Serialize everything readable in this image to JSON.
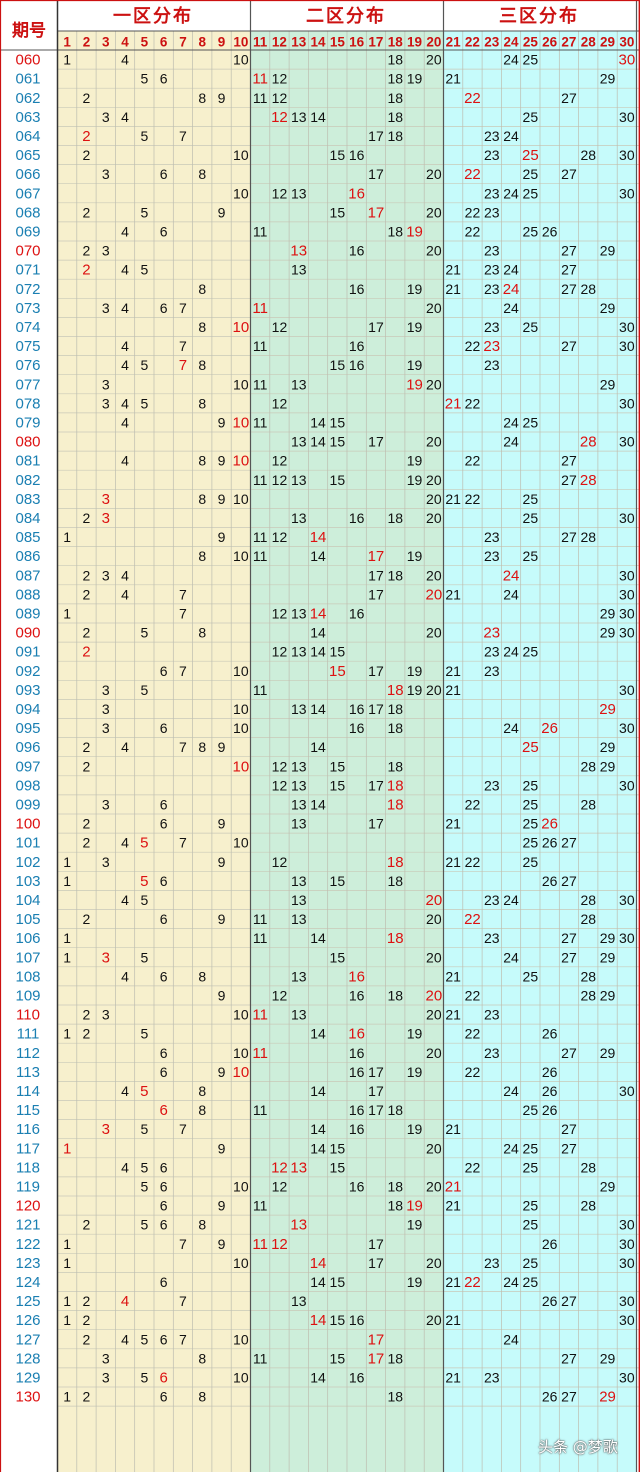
{
  "header": {
    "period_label": "期号",
    "zone_titles": [
      "一区分布",
      "二区分布",
      "三区分布"
    ],
    "columns": [
      "1",
      "2",
      "3",
      "4",
      "5",
      "6",
      "7",
      "8",
      "9",
      "10",
      "11",
      "12",
      "13",
      "14",
      "15",
      "16",
      "17",
      "18",
      "19",
      "20",
      "21",
      "22",
      "23",
      "24",
      "25",
      "26",
      "27",
      "28",
      "29",
      "30"
    ]
  },
  "colors": {
    "zone1_bg": "#f7f0cd",
    "zone2_bg": "#cdeeda",
    "zone3_bg": "#c6fbfb",
    "header_text": "#cc1111",
    "period_blue": "#1a7fb2",
    "period_red": "#dd1111",
    "number_black": "#111111",
    "number_red": "#dd1111"
  },
  "watermark": "头条 @梦歌",
  "chart_data": {
    "type": "table",
    "title": "",
    "rows": [
      {
        "period": "060",
        "red_period": true,
        "nums": [
          1,
          4,
          10,
          18,
          20,
          24,
          25,
          30
        ],
        "red": [
          30
        ]
      },
      {
        "period": "061",
        "red_period": false,
        "nums": [
          5,
          6,
          11,
          12,
          18,
          19,
          21,
          29
        ],
        "red": [
          11
        ]
      },
      {
        "period": "062",
        "red_period": false,
        "nums": [
          2,
          8,
          9,
          11,
          12,
          18,
          22,
          27
        ],
        "red": [
          22
        ]
      },
      {
        "period": "063",
        "red_period": false,
        "nums": [
          3,
          4,
          12,
          13,
          14,
          18,
          25,
          30
        ],
        "red": [
          12
        ]
      },
      {
        "period": "064",
        "red_period": false,
        "nums": [
          2,
          5,
          7,
          17,
          18,
          23,
          24
        ],
        "red": [
          2
        ]
      },
      {
        "period": "065",
        "red_period": false,
        "nums": [
          2,
          10,
          15,
          16,
          23,
          25,
          28,
          30
        ],
        "red": [
          25
        ]
      },
      {
        "period": "066",
        "red_period": false,
        "nums": [
          3,
          6,
          8,
          17,
          20,
          22,
          25,
          27
        ],
        "red": [
          22
        ]
      },
      {
        "period": "067",
        "red_period": false,
        "nums": [
          10,
          12,
          13,
          16,
          23,
          24,
          25,
          30
        ],
        "red": [
          16
        ]
      },
      {
        "period": "068",
        "red_period": false,
        "nums": [
          2,
          5,
          9,
          15,
          17,
          20,
          22,
          23
        ],
        "red": [
          17
        ]
      },
      {
        "period": "069",
        "red_period": false,
        "nums": [
          4,
          6,
          11,
          18,
          19,
          22,
          25,
          26
        ],
        "red": [
          19
        ]
      },
      {
        "period": "070",
        "red_period": true,
        "nums": [
          2,
          3,
          13,
          16,
          20,
          23,
          27,
          29
        ],
        "red": [
          13
        ]
      },
      {
        "period": "071",
        "red_period": false,
        "nums": [
          2,
          4,
          5,
          13,
          21,
          23,
          24,
          27
        ],
        "red": [
          2
        ]
      },
      {
        "period": "072",
        "red_period": false,
        "nums": [
          8,
          16,
          19,
          21,
          23,
          24,
          27,
          28
        ],
        "red": [
          24
        ]
      },
      {
        "period": "073",
        "red_period": false,
        "nums": [
          3,
          4,
          6,
          7,
          11,
          20,
          24,
          29
        ],
        "red": [
          11
        ]
      },
      {
        "period": "074",
        "red_period": false,
        "nums": [
          8,
          10,
          12,
          17,
          19,
          23,
          25,
          30
        ],
        "red": [
          10
        ]
      },
      {
        "period": "075",
        "red_period": false,
        "nums": [
          4,
          7,
          11,
          16,
          22,
          23,
          27,
          30
        ],
        "red": [
          23
        ]
      },
      {
        "period": "076",
        "red_period": false,
        "nums": [
          4,
          5,
          7,
          8,
          15,
          16,
          19,
          23
        ],
        "red": [
          7
        ]
      },
      {
        "period": "077",
        "red_period": false,
        "nums": [
          3,
          10,
          11,
          13,
          19,
          20,
          29
        ],
        "red": [
          19
        ]
      },
      {
        "period": "078",
        "red_period": false,
        "nums": [
          3,
          4,
          5,
          8,
          12,
          21,
          22,
          30
        ],
        "red": [
          21
        ]
      },
      {
        "period": "079",
        "red_period": false,
        "nums": [
          4,
          9,
          10,
          11,
          14,
          15,
          24,
          25
        ],
        "red": [
          10
        ]
      },
      {
        "period": "080",
        "red_period": true,
        "nums": [
          13,
          14,
          15,
          17,
          20,
          24,
          28,
          30
        ],
        "red": [
          28
        ]
      },
      {
        "period": "081",
        "red_period": false,
        "nums": [
          4,
          8,
          9,
          10,
          12,
          19,
          22,
          27
        ],
        "red": [
          10
        ]
      },
      {
        "period": "082",
        "red_period": false,
        "nums": [
          11,
          12,
          13,
          15,
          19,
          20,
          27,
          28
        ],
        "red": [
          28
        ]
      },
      {
        "period": "083",
        "red_period": false,
        "nums": [
          3,
          8,
          9,
          10,
          20,
          21,
          22,
          25
        ],
        "red": [
          3
        ]
      },
      {
        "period": "084",
        "red_period": false,
        "nums": [
          2,
          3,
          13,
          16,
          18,
          20,
          25,
          30
        ],
        "red": [
          3
        ]
      },
      {
        "period": "085",
        "red_period": false,
        "nums": [
          1,
          9,
          11,
          12,
          14,
          23,
          27,
          28
        ],
        "red": [
          14
        ]
      },
      {
        "period": "086",
        "red_period": false,
        "nums": [
          8,
          10,
          11,
          14,
          17,
          19,
          23,
          25
        ],
        "red": [
          17
        ]
      },
      {
        "period": "087",
        "red_period": false,
        "nums": [
          2,
          3,
          4,
          17,
          18,
          20,
          24,
          30
        ],
        "red": [
          24
        ]
      },
      {
        "period": "088",
        "red_period": false,
        "nums": [
          2,
          4,
          7,
          17,
          20,
          21,
          24,
          30
        ],
        "red": [
          20
        ]
      },
      {
        "period": "089",
        "red_period": false,
        "nums": [
          1,
          7,
          12,
          13,
          14,
          16,
          29,
          30
        ],
        "red": [
          14
        ]
      },
      {
        "period": "090",
        "red_period": true,
        "nums": [
          2,
          5,
          8,
          14,
          20,
          23,
          29,
          30
        ],
        "red": [
          23
        ]
      },
      {
        "period": "091",
        "red_period": false,
        "nums": [
          2,
          12,
          13,
          14,
          15,
          23,
          24,
          25
        ],
        "red": [
          2
        ]
      },
      {
        "period": "092",
        "red_period": false,
        "nums": [
          6,
          7,
          10,
          15,
          17,
          19,
          21,
          23
        ],
        "red": [
          15
        ]
      },
      {
        "period": "093",
        "red_period": false,
        "nums": [
          3,
          5,
          11,
          18,
          19,
          20,
          21,
          30
        ],
        "red": [
          18
        ]
      },
      {
        "period": "094",
        "red_period": false,
        "nums": [
          3,
          10,
          13,
          14,
          16,
          17,
          18,
          29
        ],
        "red": [
          29
        ]
      },
      {
        "period": "095",
        "red_period": false,
        "nums": [
          3,
          6,
          10,
          16,
          18,
          24,
          26,
          30
        ],
        "red": [
          26
        ]
      },
      {
        "period": "096",
        "red_period": false,
        "nums": [
          2,
          4,
          7,
          8,
          9,
          14,
          25,
          29
        ],
        "red": [
          25
        ]
      },
      {
        "period": "097",
        "red_period": false,
        "nums": [
          2,
          10,
          12,
          13,
          15,
          18,
          28,
          29
        ],
        "red": [
          10
        ]
      },
      {
        "period": "098",
        "red_period": false,
        "nums": [
          12,
          13,
          15,
          17,
          18,
          23,
          25,
          30
        ],
        "red": [
          18
        ]
      },
      {
        "period": "099",
        "red_period": false,
        "nums": [
          3,
          6,
          13,
          14,
          18,
          22,
          25,
          28
        ],
        "red": [
          18
        ]
      },
      {
        "period": "100",
        "red_period": true,
        "nums": [
          2,
          6,
          9,
          13,
          17,
          21,
          25,
          26
        ],
        "red": [
          26
        ]
      },
      {
        "period": "101",
        "red_period": false,
        "nums": [
          2,
          4,
          5,
          7,
          10,
          25,
          26,
          27
        ],
        "red": [
          5
        ]
      },
      {
        "period": "102",
        "red_period": false,
        "nums": [
          1,
          3,
          9,
          12,
          18,
          21,
          22,
          25
        ],
        "red": [
          18
        ]
      },
      {
        "period": "103",
        "red_period": false,
        "nums": [
          1,
          5,
          6,
          13,
          15,
          18,
          26,
          27
        ],
        "red": [
          5
        ]
      },
      {
        "period": "104",
        "red_period": false,
        "nums": [
          4,
          5,
          13,
          20,
          23,
          24,
          28,
          30
        ],
        "red": [
          20
        ]
      },
      {
        "period": "105",
        "red_period": false,
        "nums": [
          2,
          6,
          9,
          11,
          13,
          20,
          22,
          28
        ],
        "red": [
          22
        ]
      },
      {
        "period": "106",
        "red_period": false,
        "nums": [
          1,
          11,
          14,
          18,
          23,
          27,
          29,
          30
        ],
        "red": [
          18
        ]
      },
      {
        "period": "107",
        "red_period": false,
        "nums": [
          1,
          3,
          5,
          15,
          20,
          24,
          27,
          29
        ],
        "red": [
          3
        ]
      },
      {
        "period": "108",
        "red_period": false,
        "nums": [
          4,
          6,
          8,
          13,
          16,
          21,
          25,
          28
        ],
        "red": [
          16
        ]
      },
      {
        "period": "109",
        "red_period": false,
        "nums": [
          9,
          12,
          16,
          18,
          20,
          22,
          28,
          29
        ],
        "red": [
          20
        ]
      },
      {
        "period": "110",
        "red_period": true,
        "nums": [
          2,
          3,
          10,
          11,
          13,
          20,
          21,
          23
        ],
        "red": [
          11
        ]
      },
      {
        "period": "111",
        "red_period": false,
        "nums": [
          1,
          2,
          5,
          14,
          16,
          19,
          22,
          26
        ],
        "red": [
          16
        ]
      },
      {
        "period": "112",
        "red_period": false,
        "nums": [
          6,
          10,
          11,
          16,
          20,
          23,
          27,
          29
        ],
        "red": [
          11
        ]
      },
      {
        "period": "113",
        "red_period": false,
        "nums": [
          6,
          9,
          10,
          16,
          17,
          19,
          22,
          26
        ],
        "red": [
          10
        ]
      },
      {
        "period": "114",
        "red_period": false,
        "nums": [
          4,
          5,
          8,
          14,
          17,
          24,
          26,
          30
        ],
        "red": [
          5
        ]
      },
      {
        "period": "115",
        "red_period": false,
        "nums": [
          6,
          8,
          11,
          16,
          17,
          18,
          25,
          26
        ],
        "red": [
          6
        ]
      },
      {
        "period": "116",
        "red_period": false,
        "nums": [
          3,
          5,
          7,
          14,
          16,
          19,
          21,
          27
        ],
        "red": [
          3
        ]
      },
      {
        "period": "117",
        "red_period": false,
        "nums": [
          1,
          9,
          14,
          15,
          20,
          24,
          25,
          27
        ],
        "red": [
          1
        ]
      },
      {
        "period": "118",
        "red_period": false,
        "nums": [
          4,
          5,
          6,
          12,
          13,
          15,
          22,
          25,
          28
        ],
        "red": [
          12,
          13
        ]
      },
      {
        "period": "119",
        "red_period": false,
        "nums": [
          5,
          6,
          10,
          12,
          16,
          18,
          20,
          21,
          29
        ],
        "red": [
          21
        ]
      },
      {
        "period": "120",
        "red_period": true,
        "nums": [
          6,
          9,
          11,
          18,
          19,
          21,
          25,
          28
        ],
        "red": [
          19
        ]
      },
      {
        "period": "121",
        "red_period": false,
        "nums": [
          2,
          5,
          6,
          8,
          13,
          19,
          25,
          30
        ],
        "red": [
          13
        ]
      },
      {
        "period": "122",
        "red_period": false,
        "nums": [
          1,
          7,
          9,
          11,
          12,
          17,
          26,
          30
        ],
        "red": [
          11,
          12
        ]
      },
      {
        "period": "123",
        "red_period": false,
        "nums": [
          1,
          10,
          14,
          17,
          20,
          23,
          25,
          30
        ],
        "red": [
          14
        ]
      },
      {
        "period": "124",
        "red_period": false,
        "nums": [
          6,
          14,
          15,
          19,
          21,
          22,
          24,
          25
        ],
        "red": [
          22
        ]
      },
      {
        "period": "125",
        "red_period": false,
        "nums": [
          1,
          2,
          4,
          7,
          13,
          26,
          27,
          30
        ],
        "red": [
          4
        ]
      },
      {
        "period": "126",
        "red_period": false,
        "nums": [
          1,
          2,
          14,
          15,
          16,
          20,
          21,
          30
        ],
        "red": [
          14
        ]
      },
      {
        "period": "127",
        "red_period": false,
        "nums": [
          2,
          4,
          5,
          6,
          7,
          10,
          17,
          24
        ],
        "red": [
          17
        ]
      },
      {
        "period": "128",
        "red_period": false,
        "nums": [
          3,
          8,
          11,
          15,
          17,
          18,
          27,
          29
        ],
        "red": [
          17
        ]
      },
      {
        "period": "129",
        "red_period": false,
        "nums": [
          3,
          5,
          6,
          10,
          14,
          16,
          21,
          23,
          30
        ],
        "red": [
          6
        ]
      },
      {
        "period": "130",
        "red_period": true,
        "nums": [
          1,
          2,
          6,
          8,
          18,
          26,
          27,
          29
        ],
        "red": [
          29
        ]
      }
    ]
  }
}
